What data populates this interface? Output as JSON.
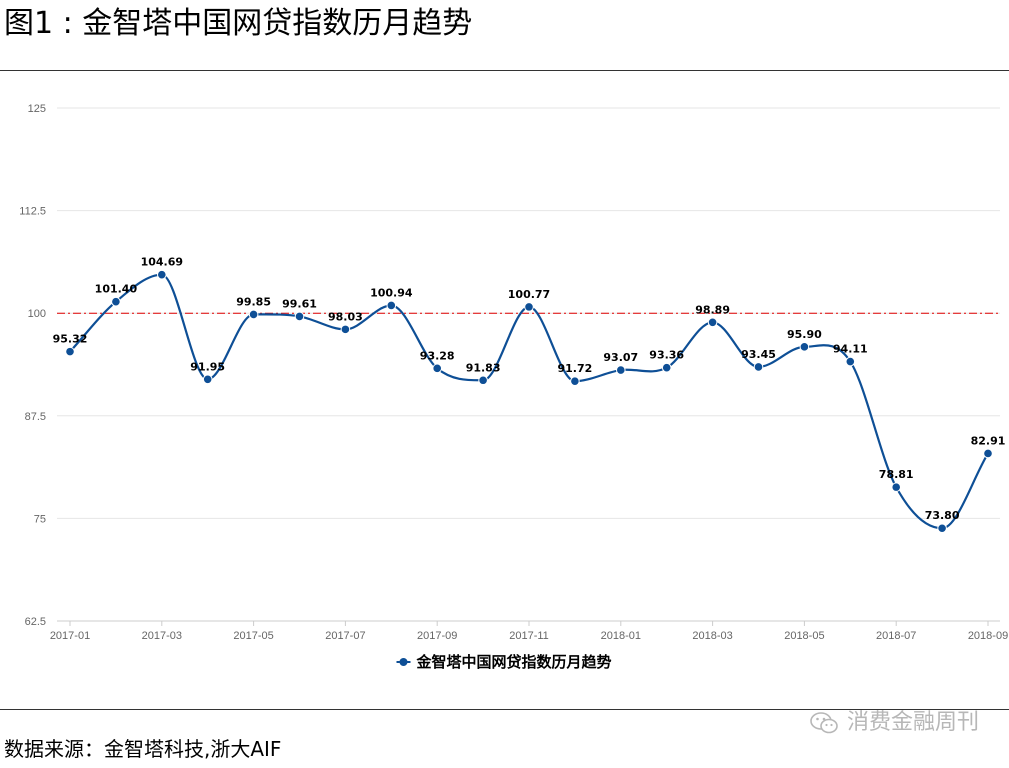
{
  "title": "图1 : 金智塔中国网贷指数历月趋势",
  "source": "数据来源：金智塔科技,浙大AIF",
  "watermark": "消费金融周刊",
  "watermark_icon": "wechat-icon",
  "colors": {
    "line": "#0e4f96",
    "reference": "#e00000",
    "grid": "#e6e6e6"
  },
  "chart_data": {
    "type": "line",
    "title": "",
    "xlabel": "",
    "ylabel": "",
    "x": [
      "2017-01",
      "2017-02",
      "2017-03",
      "2017-04",
      "2017-05",
      "2017-06",
      "2017-07",
      "2017-08",
      "2017-09",
      "2017-10",
      "2017-11",
      "2017-12",
      "2018-01",
      "2018-02",
      "2018-03",
      "2018-04",
      "2018-05",
      "2018-06",
      "2018-07",
      "2018-08",
      "2018-09"
    ],
    "x_tick_labels": [
      "2017-01",
      "2017-03",
      "2017-05",
      "2017-07",
      "2017-09",
      "2017-11",
      "2018-01",
      "2018-03",
      "2018-05",
      "2018-07",
      "2018-09"
    ],
    "y_ticks": [
      62.5,
      75,
      87.5,
      100,
      112.5,
      125
    ],
    "y_tick_labels": [
      "62.5",
      "75",
      "87.5",
      "100",
      "112.5",
      "125"
    ],
    "ylim": [
      62.5,
      125
    ],
    "reference_line": 100,
    "grid": true,
    "legend_position": "bottom-center",
    "series": [
      {
        "name": "金智塔中国网贷指数历月趋势",
        "values": [
          95.32,
          101.4,
          104.69,
          91.95,
          99.85,
          99.61,
          98.03,
          100.94,
          93.28,
          91.83,
          100.77,
          91.72,
          93.07,
          93.36,
          98.89,
          93.45,
          95.9,
          94.11,
          78.81,
          73.8,
          82.91
        ],
        "labels": [
          "95.32",
          "101.40",
          "104.69",
          "91.95",
          "99.85",
          "99.61",
          "98.03",
          "100.94",
          "93.28",
          "91.83",
          "100.77",
          "91.72",
          "93.07",
          "93.36",
          "98.89",
          "93.45",
          "95.90",
          "94.11",
          "78.81",
          "73.80",
          "82.91"
        ]
      }
    ]
  }
}
